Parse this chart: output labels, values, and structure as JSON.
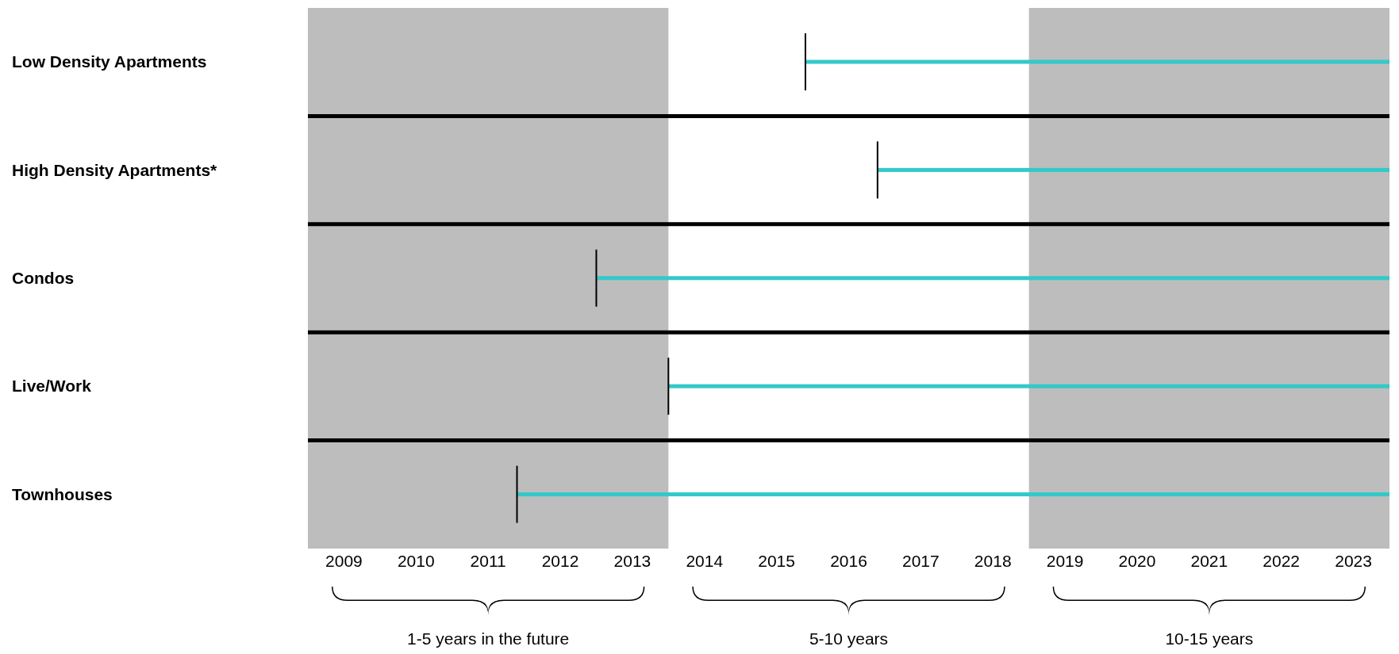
{
  "chart_data": {
    "type": "bar",
    "orientation": "horizontal",
    "categories": [
      "Low Density Apartments",
      "High Density Apartments*",
      "Condos",
      "Live/Work",
      "Townhouses"
    ],
    "base": [
      2015.4,
      2016.4,
      2012.5,
      2013.5,
      2011.4
    ],
    "values": [
      8.1,
      7.1,
      11,
      10,
      12.1
    ],
    "color": "#33c9c9",
    "xlim": [
      2008.5,
      2023.5
    ],
    "xticks": [
      2009,
      2010,
      2011,
      2012,
      2013,
      2014,
      2015,
      2016,
      2017,
      2018,
      2019,
      2020,
      2021,
      2022,
      2023
    ],
    "grid": "y",
    "bands": [
      {
        "axis": "x",
        "from": 2008.5,
        "to": 2013.5,
        "color": "#bdbdbd"
      },
      {
        "axis": "x",
        "from": 2018.5,
        "to": 2023.5,
        "color": "#bdbdbd"
      }
    ],
    "annotations": [
      "1-5 years in the future",
      "5-10 years",
      "10-15 years"
    ]
  }
}
